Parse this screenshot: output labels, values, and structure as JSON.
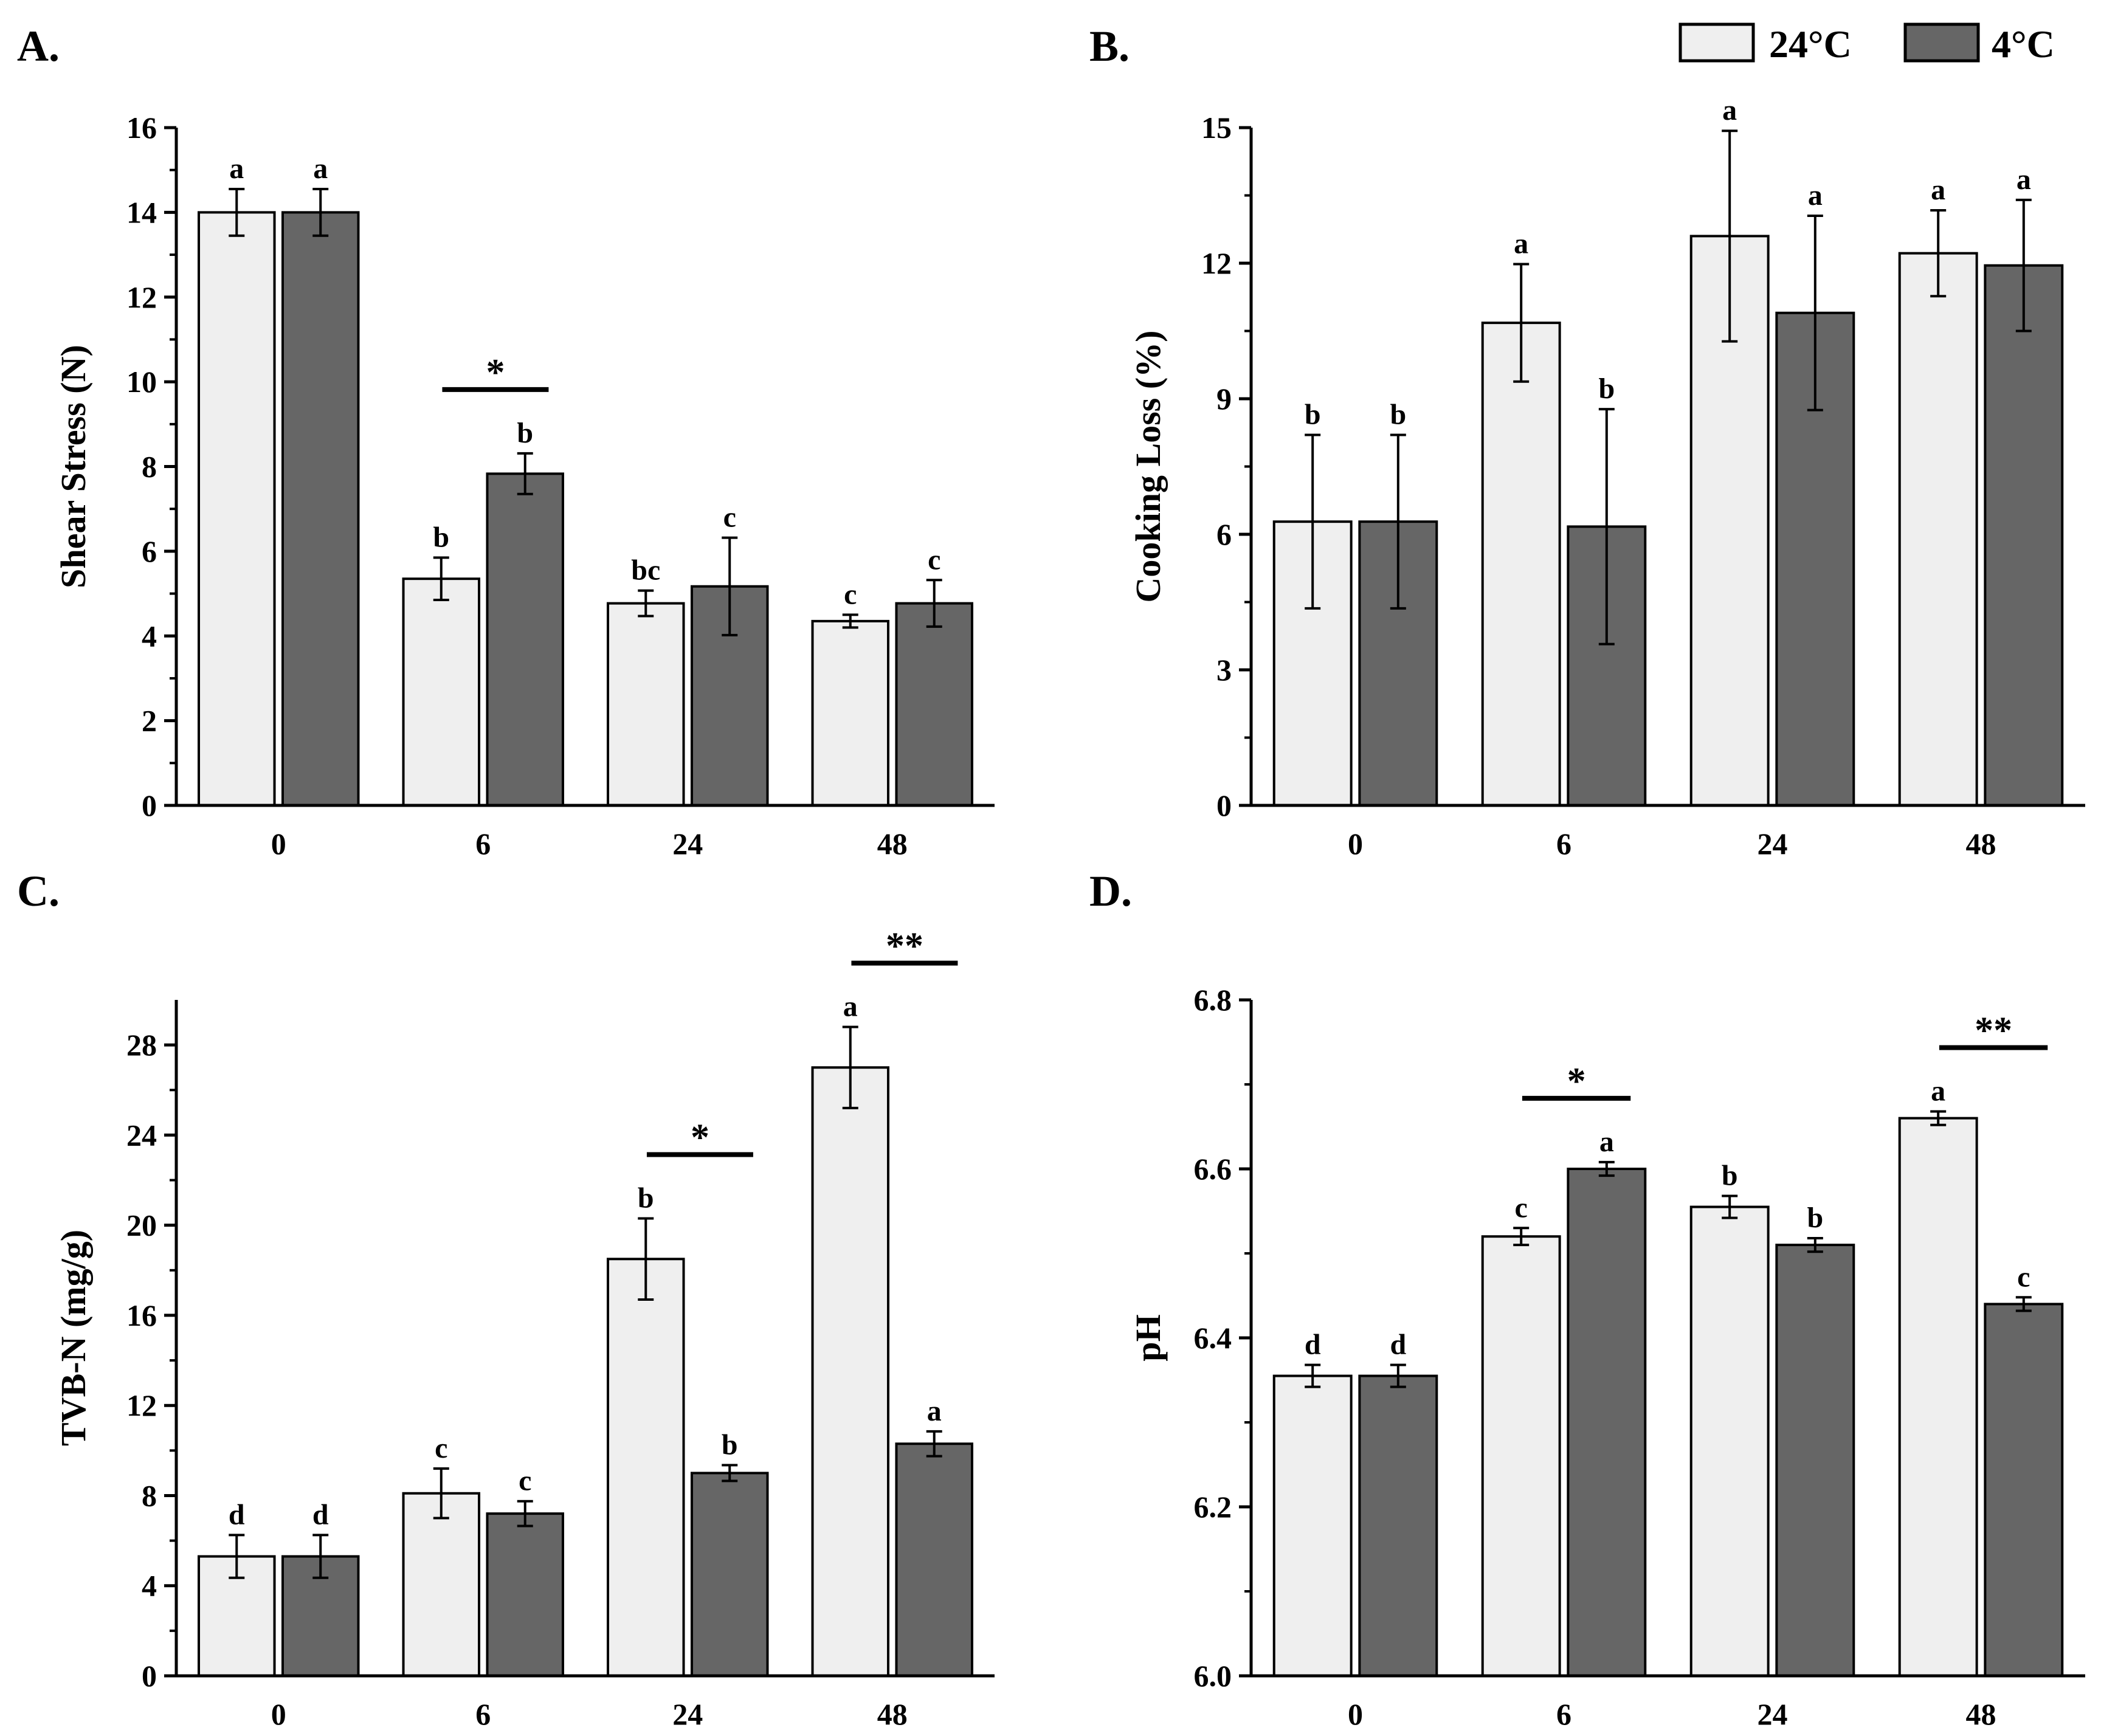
{
  "colors": {
    "series_24": "#efefef",
    "series_4": "#666666",
    "stroke": "#000000"
  },
  "legend": {
    "items": [
      {
        "name": "24°C",
        "color": "#efefef"
      },
      {
        "name": "4°C",
        "color": "#666666"
      }
    ]
  },
  "chart_data": [
    {
      "type": "bar",
      "panel": "A.",
      "title": "",
      "xlabel": "",
      "ylabel": "Shear Stress (N)",
      "categories": [
        "0",
        "6",
        "24",
        "48"
      ],
      "ylim": [
        0,
        16
      ],
      "yticks": [
        0,
        2,
        4,
        6,
        8,
        10,
        12,
        14,
        16
      ],
      "ytick_labels": [
        "0",
        "2",
        "4",
        "6",
        "8",
        "10",
        "12",
        "14",
        "16"
      ],
      "series": [
        {
          "name": "24°C",
          "values": [
            14.0,
            5.35,
            4.77,
            4.35
          ],
          "errors": [
            0.55,
            0.5,
            0.3,
            0.15
          ],
          "letters": [
            "a",
            "b",
            "bc",
            "c"
          ]
        },
        {
          "name": "4°C",
          "values": [
            14.0,
            7.83,
            5.17,
            4.77
          ],
          "errors": [
            0.55,
            0.48,
            1.15,
            0.55
          ],
          "letters": [
            "a",
            "b",
            "c",
            "c"
          ]
        }
      ],
      "significance": [
        {
          "category": "6",
          "label": "*"
        }
      ]
    },
    {
      "type": "bar",
      "panel": "B.",
      "title": "",
      "xlabel": "",
      "ylabel": "Cooking Loss (%)",
      "categories": [
        "0",
        "6",
        "24",
        "48"
      ],
      "ylim": [
        0,
        15
      ],
      "yticks": [
        0,
        3,
        6,
        9,
        12,
        15
      ],
      "ytick_labels": [
        "0",
        "3",
        "6",
        "9",
        "12",
        "15"
      ],
      "series": [
        {
          "name": "24°C",
          "values": [
            6.28,
            10.68,
            12.6,
            12.22
          ],
          "errors": [
            1.92,
            1.3,
            2.33,
            0.95
          ],
          "letters": [
            "b",
            "a",
            "a",
            "a"
          ]
        },
        {
          "name": "4°C",
          "values": [
            6.28,
            6.17,
            10.9,
            11.95
          ],
          "errors": [
            1.92,
            2.6,
            2.15,
            1.45
          ],
          "letters": [
            "b",
            "b",
            "a",
            "a"
          ]
        }
      ],
      "significance": []
    },
    {
      "type": "bar",
      "panel": "C.",
      "title": "",
      "xlabel": "",
      "ylabel": "TVB-N (mg/g)",
      "categories": [
        "0",
        "6",
        "24",
        "48"
      ],
      "ylim": [
        0,
        30
      ],
      "yticks": [
        0,
        4,
        8,
        12,
        16,
        20,
        24,
        28
      ],
      "ytick_labels": [
        "0",
        "4",
        "8",
        "12",
        "16",
        "20",
        "24",
        "28"
      ],
      "series": [
        {
          "name": "24°C",
          "values": [
            5.3,
            8.1,
            18.5,
            27.0
          ],
          "errors": [
            0.95,
            1.1,
            1.8,
            1.8
          ],
          "letters": [
            "d",
            "c",
            "b",
            "a"
          ]
        },
        {
          "name": "4°C",
          "values": [
            5.3,
            7.2,
            9.0,
            10.3
          ],
          "errors": [
            0.95,
            0.55,
            0.35,
            0.55
          ],
          "letters": [
            "d",
            "c",
            "b",
            "a"
          ]
        }
      ],
      "significance": [
        {
          "category": "24",
          "label": "*"
        },
        {
          "category": "48",
          "label": "**"
        }
      ]
    },
    {
      "type": "bar",
      "panel": "D.",
      "title": "",
      "xlabel": "",
      "ylabel": "pH",
      "categories": [
        "0",
        "6",
        "24",
        "48"
      ],
      "ylim": [
        6.0,
        6.8
      ],
      "yticks": [
        6.0,
        6.2,
        6.4,
        6.6,
        6.8
      ],
      "ytick_labels": [
        "6.0",
        "6.2",
        "6.4",
        "6.6",
        "6.8"
      ],
      "series": [
        {
          "name": "24°C",
          "values": [
            6.355,
            6.52,
            6.555,
            6.66
          ],
          "errors": [
            0.013,
            0.01,
            0.013,
            0.008
          ],
          "letters": [
            "d",
            "c",
            "b",
            "a"
          ]
        },
        {
          "name": "4°C",
          "values": [
            6.355,
            6.6,
            6.51,
            6.44
          ],
          "errors": [
            0.013,
            0.008,
            0.008,
            0.008
          ],
          "letters": [
            "d",
            "a",
            "b",
            "c"
          ]
        }
      ],
      "significance": [
        {
          "category": "6",
          "label": "*"
        },
        {
          "category": "48",
          "label": "**"
        }
      ]
    }
  ]
}
